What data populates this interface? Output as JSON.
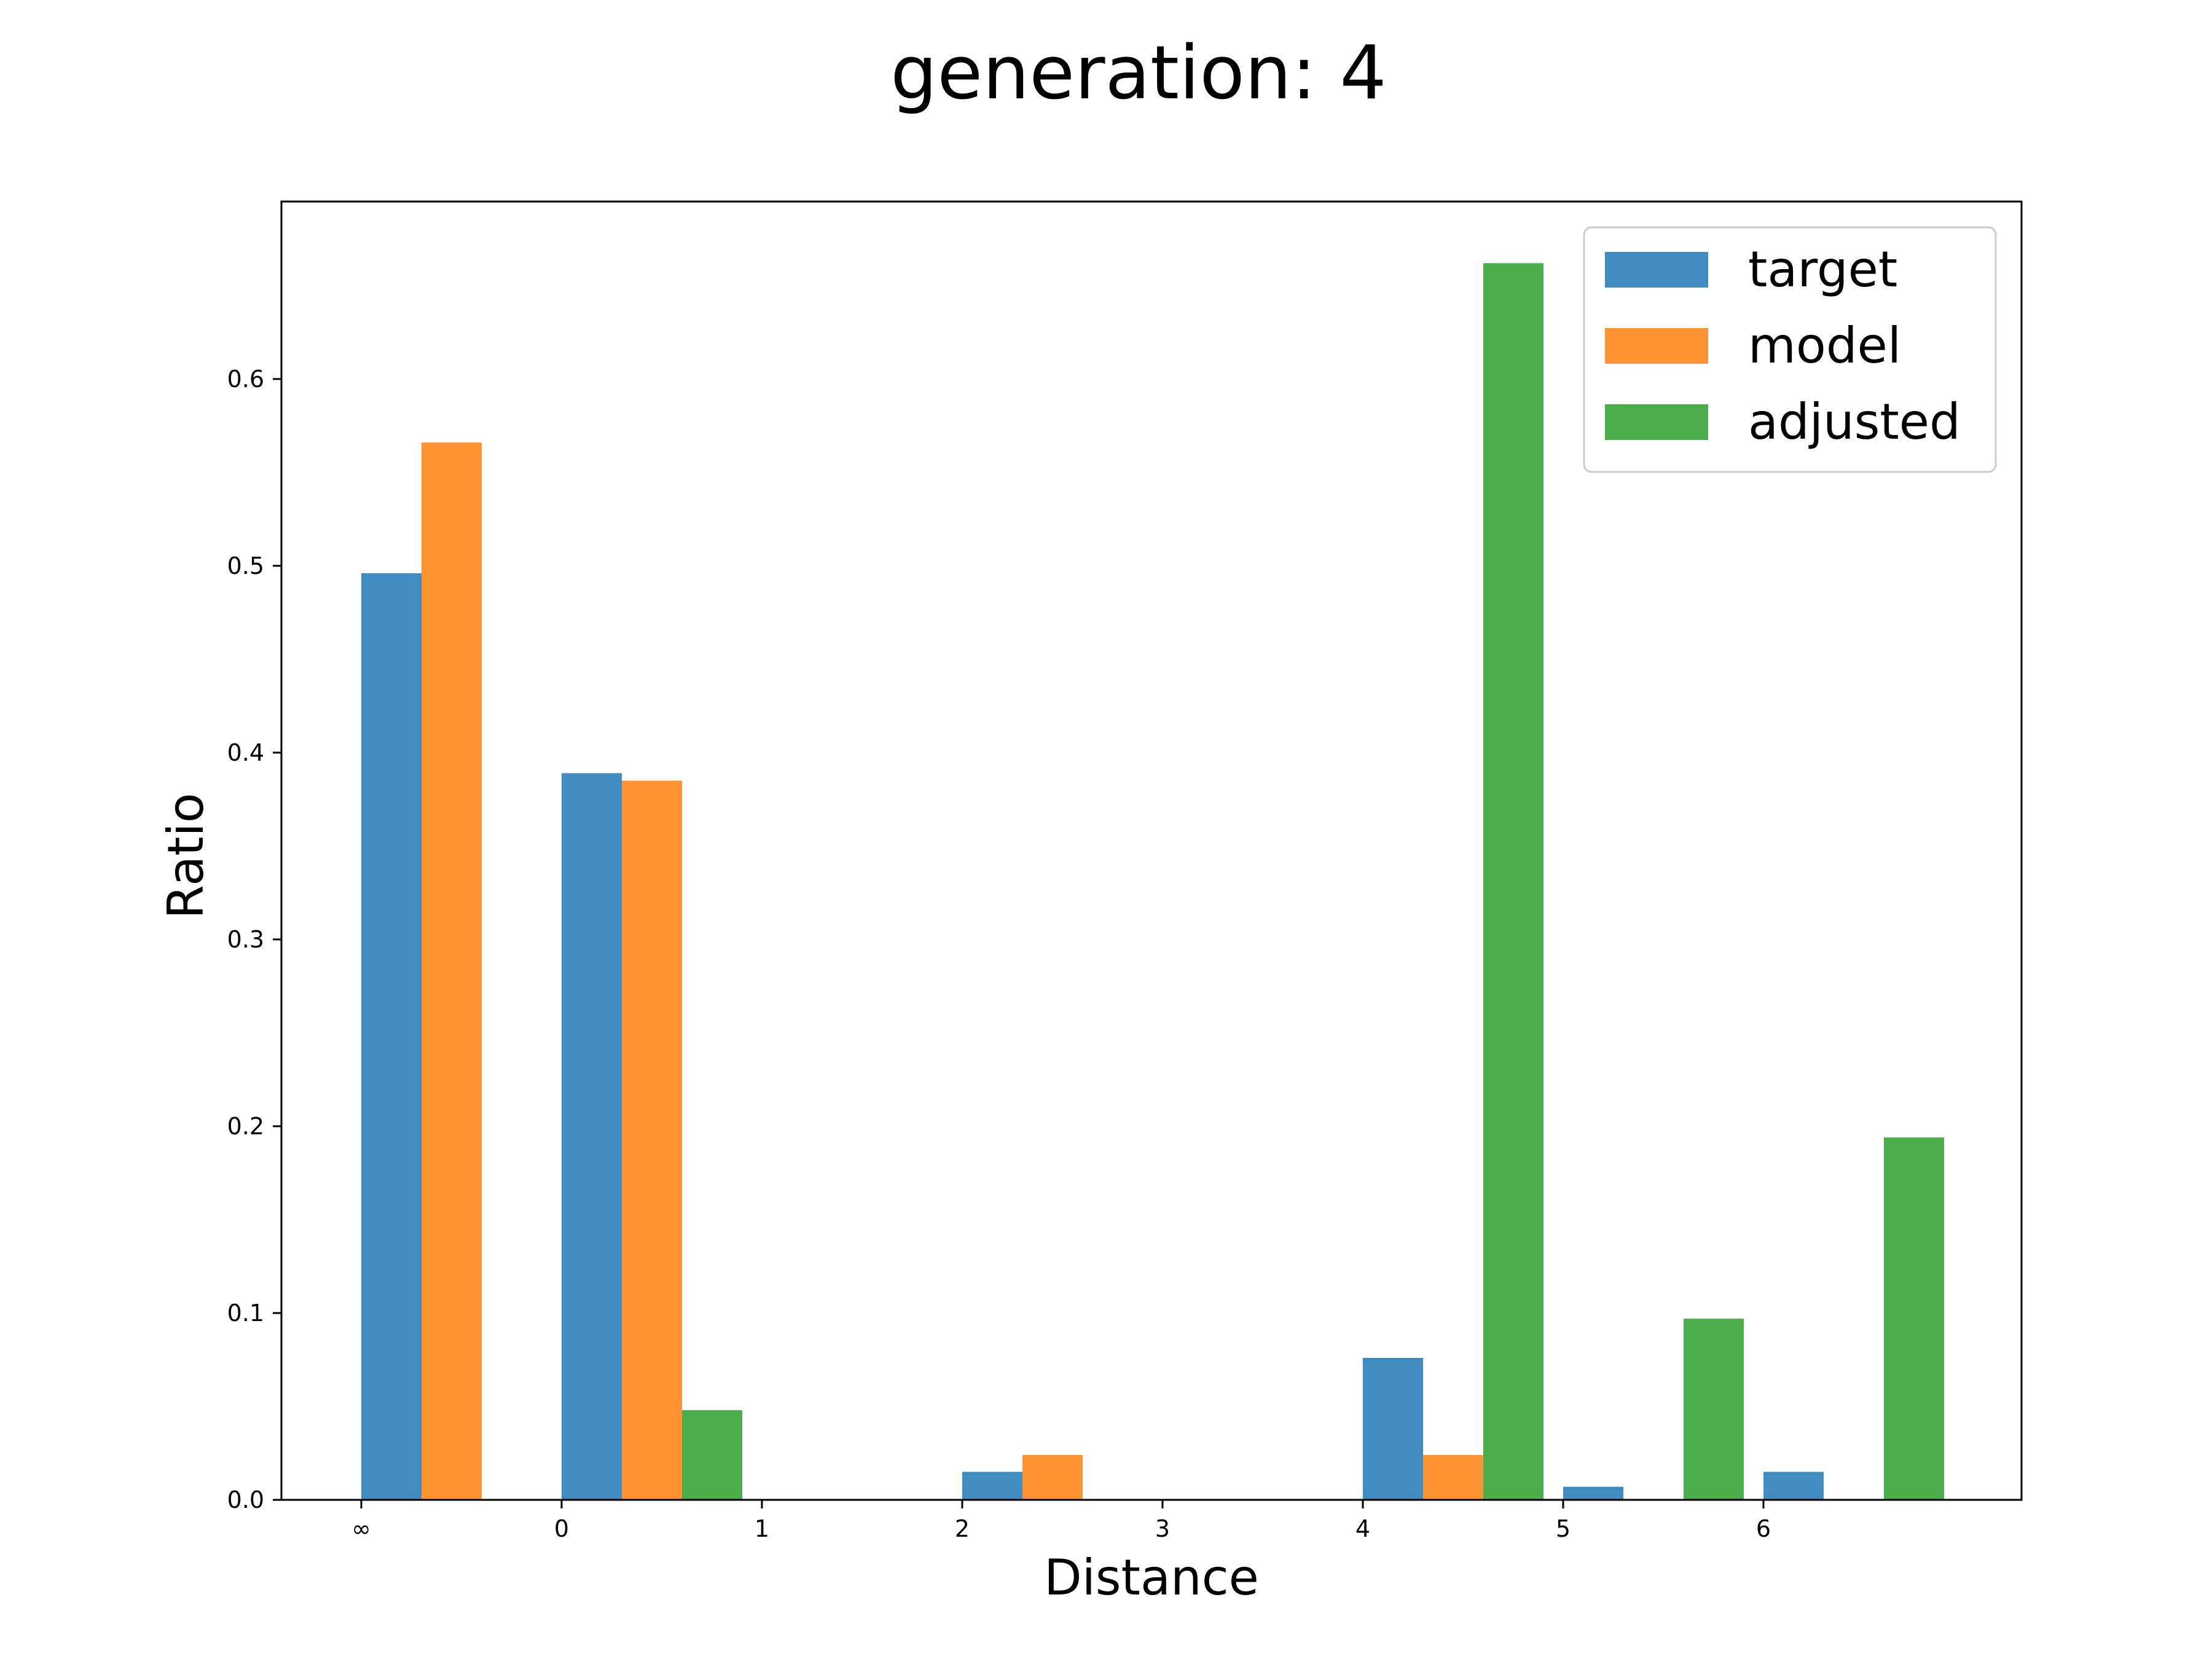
{
  "chart_data": {
    "type": "bar",
    "title": "generation: 4",
    "xlabel": "Distance",
    "ylabel": "Ratio",
    "ylim": [
      0,
      0.695
    ],
    "yticks": [
      "0.0",
      "0.1",
      "0.2",
      "0.3",
      "0.4",
      "0.5",
      "0.6"
    ],
    "xticks": [
      "∞",
      "0",
      "1",
      "2",
      "3",
      "4",
      "5",
      "6"
    ],
    "legend_position": "top-right",
    "grid": false,
    "series": [
      {
        "name": "target",
        "color": "#1f77b4",
        "bars": [
          {
            "x": "∞",
            "value": 0.496
          },
          {
            "x": "0",
            "value": 0.389
          },
          {
            "x": "2",
            "value": 0.015
          },
          {
            "x": "4",
            "value": 0.076
          },
          {
            "x": "5",
            "value": 0.007
          },
          {
            "x": "6",
            "value": 0.015
          }
        ]
      },
      {
        "name": "model",
        "color": "#ff7f0e",
        "bars": [
          {
            "x": "∞",
            "value": 0.566
          },
          {
            "x": "0",
            "value": 0.385
          },
          {
            "x": "2",
            "value": 0.024
          },
          {
            "x": "4",
            "value": 0.024
          }
        ]
      },
      {
        "name": "adjusted",
        "color": "#2ca02c",
        "bars": [
          {
            "x": "0",
            "value": 0.048
          },
          {
            "x": "4",
            "value": 0.662
          },
          {
            "x": "5",
            "value": 0.097
          },
          {
            "x": "6",
            "value": 0.194
          }
        ]
      }
    ]
  }
}
